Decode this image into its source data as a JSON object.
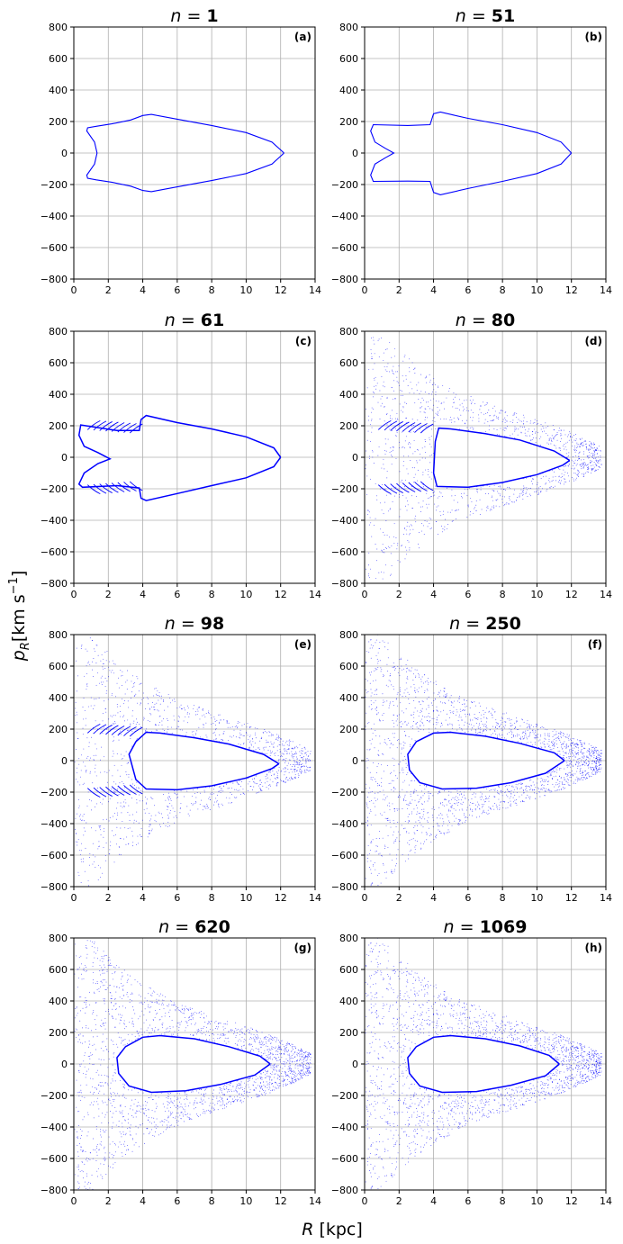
{
  "figure": {
    "xlabel": "R [kpc]",
    "ylabel": "p_R [km s^-1]",
    "ylabel_sub": "R",
    "ylabel_unit": "[km s",
    "ylabel_exp": "−1",
    "ylabel_close": "]"
  },
  "chart_data": [
    {
      "type": "scatter",
      "title": "n = 1",
      "title_var": "n",
      "title_num": "1",
      "panel": "(a)",
      "stage": "closed",
      "xlim": [
        0,
        14
      ],
      "ylim": [
        -800,
        800
      ],
      "xticks": [
        0,
        2,
        4,
        6,
        8,
        10,
        12,
        14
      ],
      "yticks": [
        -800,
        -600,
        -400,
        -200,
        0,
        200,
        400,
        600,
        800
      ],
      "grid": true,
      "color": "#0000ff",
      "curve": [
        [
          12.2,
          0
        ],
        [
          11.5,
          70
        ],
        [
          10,
          130
        ],
        [
          8,
          175
        ],
        [
          6,
          215
        ],
        [
          4.5,
          245
        ],
        [
          4,
          238
        ],
        [
          3.3,
          210
        ],
        [
          2.2,
          185
        ],
        [
          1.3,
          170
        ],
        [
          0.8,
          160
        ],
        [
          0.75,
          140
        ],
        [
          1.2,
          70
        ],
        [
          1.35,
          0
        ],
        [
          1.2,
          -70
        ],
        [
          0.75,
          -140
        ],
        [
          0.8,
          -160
        ],
        [
          1.3,
          -170
        ],
        [
          2.2,
          -185
        ],
        [
          3.3,
          -210
        ],
        [
          4,
          -238
        ],
        [
          4.5,
          -245
        ],
        [
          6,
          -215
        ],
        [
          8,
          -175
        ],
        [
          10,
          -130
        ],
        [
          11.5,
          -70
        ],
        [
          12.2,
          0
        ]
      ]
    },
    {
      "type": "scatter",
      "title": "n = 51",
      "title_var": "n",
      "title_num": "51",
      "panel": "(b)",
      "stage": "closed",
      "xlim": [
        0,
        14
      ],
      "ylim": [
        -800,
        800
      ],
      "xticks": [
        0,
        2,
        4,
        6,
        8,
        10,
        12,
        14
      ],
      "yticks": [
        -800,
        -600,
        -400,
        -200,
        0,
        200,
        400,
        600,
        800
      ],
      "grid": true,
      "color": "#0000ff",
      "curve": [
        [
          12.0,
          0
        ],
        [
          11.4,
          70
        ],
        [
          10,
          130
        ],
        [
          8,
          180
        ],
        [
          6,
          220
        ],
        [
          4.4,
          260
        ],
        [
          4,
          250
        ],
        [
          3.8,
          180
        ],
        [
          2.5,
          175
        ],
        [
          0.5,
          180
        ],
        [
          0.35,
          140
        ],
        [
          0.6,
          70
        ],
        [
          1.2,
          30
        ],
        [
          1.7,
          0
        ],
        [
          1.2,
          -30
        ],
        [
          0.6,
          -70
        ],
        [
          0.35,
          -140
        ],
        [
          0.5,
          -180
        ],
        [
          2.5,
          -178
        ],
        [
          3.8,
          -180
        ],
        [
          4,
          -250
        ],
        [
          4.4,
          -265
        ],
        [
          6,
          -225
        ],
        [
          8,
          -180
        ],
        [
          10,
          -130
        ],
        [
          11.4,
          -70
        ],
        [
          12.0,
          0
        ]
      ]
    },
    {
      "type": "scatter",
      "title": "n = 61",
      "title_var": "n",
      "title_num": "61",
      "panel": "(c)",
      "stage": "filaments",
      "xlim": [
        0,
        14
      ],
      "ylim": [
        -800,
        800
      ],
      "xticks": [
        0,
        2,
        4,
        6,
        8,
        10,
        12,
        14
      ],
      "yticks": [
        -800,
        -600,
        -400,
        -200,
        0,
        200,
        400,
        600,
        800
      ],
      "grid": true,
      "color": "#0000ff",
      "curve": [
        [
          12.0,
          0
        ],
        [
          11.6,
          60
        ],
        [
          10,
          130
        ],
        [
          8,
          180
        ],
        [
          6,
          220
        ],
        [
          4.2,
          265
        ],
        [
          3.9,
          240
        ],
        [
          3.8,
          170
        ],
        [
          2.5,
          170
        ],
        [
          0.4,
          205
        ],
        [
          0.3,
          140
        ],
        [
          0.6,
          70
        ],
        [
          1.4,
          30
        ],
        [
          2.1,
          -10
        ],
        [
          1.4,
          -40
        ],
        [
          0.6,
          -100
        ],
        [
          0.3,
          -170
        ],
        [
          0.5,
          -190
        ],
        [
          2.5,
          -180
        ],
        [
          3.8,
          -195
        ],
        [
          3.9,
          -260
        ],
        [
          4.2,
          -275
        ],
        [
          6,
          -230
        ],
        [
          8,
          -180
        ],
        [
          10,
          -130
        ],
        [
          11.6,
          -60
        ],
        [
          12.0,
          0
        ]
      ]
    },
    {
      "type": "scatter",
      "title": "n = 80",
      "title_var": "n",
      "title_num": "80",
      "panel": "(d)",
      "stage": "chaotic",
      "xlim": [
        0,
        14
      ],
      "ylim": [
        -800,
        800
      ],
      "xticks": [
        0,
        2,
        4,
        6,
        8,
        10,
        12,
        14
      ],
      "yticks": [
        -800,
        -600,
        -400,
        -200,
        0,
        200,
        400,
        600,
        800
      ],
      "grid": true,
      "color": "#0000ff",
      "curve": [
        [
          11.9,
          -20
        ],
        [
          11,
          40
        ],
        [
          9,
          110
        ],
        [
          7,
          150
        ],
        [
          5,
          180
        ],
        [
          4.3,
          185
        ],
        [
          4.1,
          100
        ],
        [
          4.0,
          -100
        ],
        [
          4.2,
          -185
        ],
        [
          6,
          -190
        ],
        [
          8,
          -160
        ],
        [
          10,
          -110
        ],
        [
          11.5,
          -50
        ],
        [
          11.9,
          -20
        ]
      ]
    },
    {
      "type": "scatter",
      "title": "n = 98",
      "title_var": "n",
      "title_num": "98",
      "panel": "(e)",
      "stage": "chaotic",
      "xlim": [
        0,
        14
      ],
      "ylim": [
        -800,
        800
      ],
      "xticks": [
        0,
        2,
        4,
        6,
        8,
        10,
        12,
        14
      ],
      "yticks": [
        -800,
        -600,
        -400,
        -200,
        0,
        200,
        400,
        600,
        800
      ],
      "grid": true,
      "color": "#0000ff",
      "curve": [
        [
          11.9,
          -20
        ],
        [
          11,
          40
        ],
        [
          9,
          105
        ],
        [
          7,
          145
        ],
        [
          5,
          175
        ],
        [
          4.2,
          180
        ],
        [
          3.6,
          120
        ],
        [
          3.2,
          40
        ],
        [
          3.6,
          -120
        ],
        [
          4.2,
          -180
        ],
        [
          6,
          -185
        ],
        [
          8,
          -160
        ],
        [
          10,
          -110
        ],
        [
          11.5,
          -50
        ],
        [
          11.9,
          -20
        ]
      ]
    },
    {
      "type": "scatter",
      "title": "n = 250",
      "title_var": "n",
      "title_num": "250",
      "panel": "(f)",
      "stage": "relaxed",
      "xlim": [
        0,
        14
      ],
      "ylim": [
        -800,
        800
      ],
      "xticks": [
        0,
        2,
        4,
        6,
        8,
        10,
        12,
        14
      ],
      "yticks": [
        -800,
        -600,
        -400,
        -200,
        0,
        200,
        400,
        600,
        800
      ],
      "grid": true,
      "color": "#0000ff",
      "curve": [
        [
          11.6,
          0
        ],
        [
          11,
          50
        ],
        [
          9,
          110
        ],
        [
          7,
          155
        ],
        [
          5,
          180
        ],
        [
          4,
          175
        ],
        [
          3,
          120
        ],
        [
          2.5,
          40
        ],
        [
          2.6,
          -60
        ],
        [
          3.2,
          -140
        ],
        [
          4.5,
          -180
        ],
        [
          6.5,
          -175
        ],
        [
          8.5,
          -140
        ],
        [
          10.5,
          -80
        ],
        [
          11.6,
          0
        ]
      ]
    },
    {
      "type": "scatter",
      "title": "n = 620",
      "title_var": "n",
      "title_num": "620",
      "panel": "(g)",
      "stage": "relaxed",
      "xlim": [
        0,
        14
      ],
      "ylim": [
        -800,
        800
      ],
      "xticks": [
        0,
        2,
        4,
        6,
        8,
        10,
        12,
        14
      ],
      "yticks": [
        -800,
        -600,
        -400,
        -200,
        0,
        200,
        400,
        600,
        800
      ],
      "grid": true,
      "color": "#0000ff",
      "curve": [
        [
          11.4,
          0
        ],
        [
          10.8,
          50
        ],
        [
          9,
          110
        ],
        [
          7,
          160
        ],
        [
          5,
          180
        ],
        [
          4,
          170
        ],
        [
          3,
          110
        ],
        [
          2.5,
          40
        ],
        [
          2.6,
          -60
        ],
        [
          3.2,
          -140
        ],
        [
          4.5,
          -180
        ],
        [
          6.5,
          -170
        ],
        [
          8.5,
          -130
        ],
        [
          10.5,
          -70
        ],
        [
          11.4,
          0
        ]
      ]
    },
    {
      "type": "scatter",
      "title": "n = 1069",
      "title_var": "n",
      "title_num": "1069",
      "panel": "(h)",
      "stage": "relaxed",
      "xlim": [
        0,
        14
      ],
      "ylim": [
        -800,
        800
      ],
      "xticks": [
        0,
        2,
        4,
        6,
        8,
        10,
        12,
        14
      ],
      "yticks": [
        -800,
        -600,
        -400,
        -200,
        0,
        200,
        400,
        600,
        800
      ],
      "grid": true,
      "color": "#0000ff",
      "curve": [
        [
          11.3,
          0
        ],
        [
          10.7,
          55
        ],
        [
          9,
          115
        ],
        [
          7,
          160
        ],
        [
          5,
          180
        ],
        [
          4,
          170
        ],
        [
          3,
          110
        ],
        [
          2.5,
          40
        ],
        [
          2.6,
          -60
        ],
        [
          3.2,
          -140
        ],
        [
          4.5,
          -180
        ],
        [
          6.5,
          -175
        ],
        [
          8.5,
          -135
        ],
        [
          10.5,
          -75
        ],
        [
          11.3,
          0
        ]
      ]
    }
  ]
}
